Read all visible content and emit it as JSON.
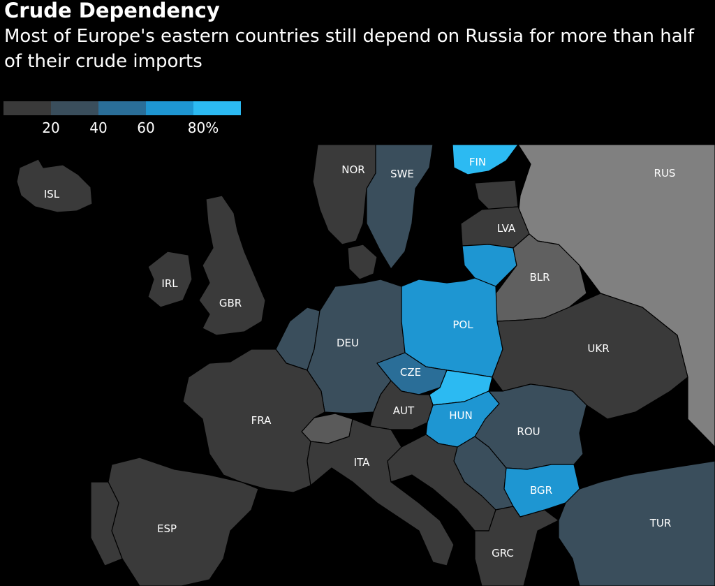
{
  "title": "Crude Dependency",
  "subtitle": "Most of Europe's eastern countries still depend on Russia for more than half of their crude imports",
  "legend": {
    "colors": [
      "#3a3a3a",
      "#3a4e5c",
      "#2a6e98",
      "#1e96d2",
      "#2cbaf2"
    ],
    "ticks": [
      "20",
      "40",
      "60",
      "80%"
    ]
  },
  "palette": {
    "background": "#000000",
    "no_data": "#5a5a5a",
    "russia": "#808080"
  },
  "countries": [
    {
      "code": "ISL",
      "label": "ISL",
      "bin": 0
    },
    {
      "code": "NOR",
      "label": "NOR",
      "bin": 0
    },
    {
      "code": "SWE",
      "label": "SWE",
      "bin": 1
    },
    {
      "code": "FIN",
      "label": "FIN",
      "bin": 4
    },
    {
      "code": "RUS",
      "label": "RUS",
      "bin": null
    },
    {
      "code": "LVA",
      "label": "LVA",
      "bin": 0
    },
    {
      "code": "IRL",
      "label": "IRL",
      "bin": 0
    },
    {
      "code": "GBR",
      "label": "GBR",
      "bin": 0
    },
    {
      "code": "BLR",
      "label": "BLR",
      "bin": null
    },
    {
      "code": "DEU",
      "label": "DEU",
      "bin": 1
    },
    {
      "code": "POL",
      "label": "POL",
      "bin": 3
    },
    {
      "code": "UKR",
      "label": "UKR",
      "bin": 0
    },
    {
      "code": "CZE",
      "label": "CZE",
      "bin": 2
    },
    {
      "code": "FRA",
      "label": "FRA",
      "bin": 0
    },
    {
      "code": "AUT",
      "label": "AUT",
      "bin": 0
    },
    {
      "code": "HUN",
      "label": "HUN",
      "bin": 3
    },
    {
      "code": "ROU",
      "label": "ROU",
      "bin": 1
    },
    {
      "code": "ITA",
      "label": "ITA",
      "bin": 0
    },
    {
      "code": "BGR",
      "label": "BGR",
      "bin": 3
    },
    {
      "code": "ESP",
      "label": "ESP",
      "bin": 0
    },
    {
      "code": "TUR",
      "label": "TUR",
      "bin": 1
    },
    {
      "code": "GRC",
      "label": "GRC",
      "bin": 0
    }
  ],
  "unlabeled_regions": [
    {
      "name": "lithuania",
      "bin": 3
    },
    {
      "name": "slovakia",
      "bin": 4
    },
    {
      "name": "switzerland",
      "bin": null
    },
    {
      "name": "benelux",
      "bin": 1
    },
    {
      "name": "denmark",
      "bin": 0
    },
    {
      "name": "serbia",
      "bin": 1
    },
    {
      "name": "estonia",
      "bin": 0
    }
  ]
}
